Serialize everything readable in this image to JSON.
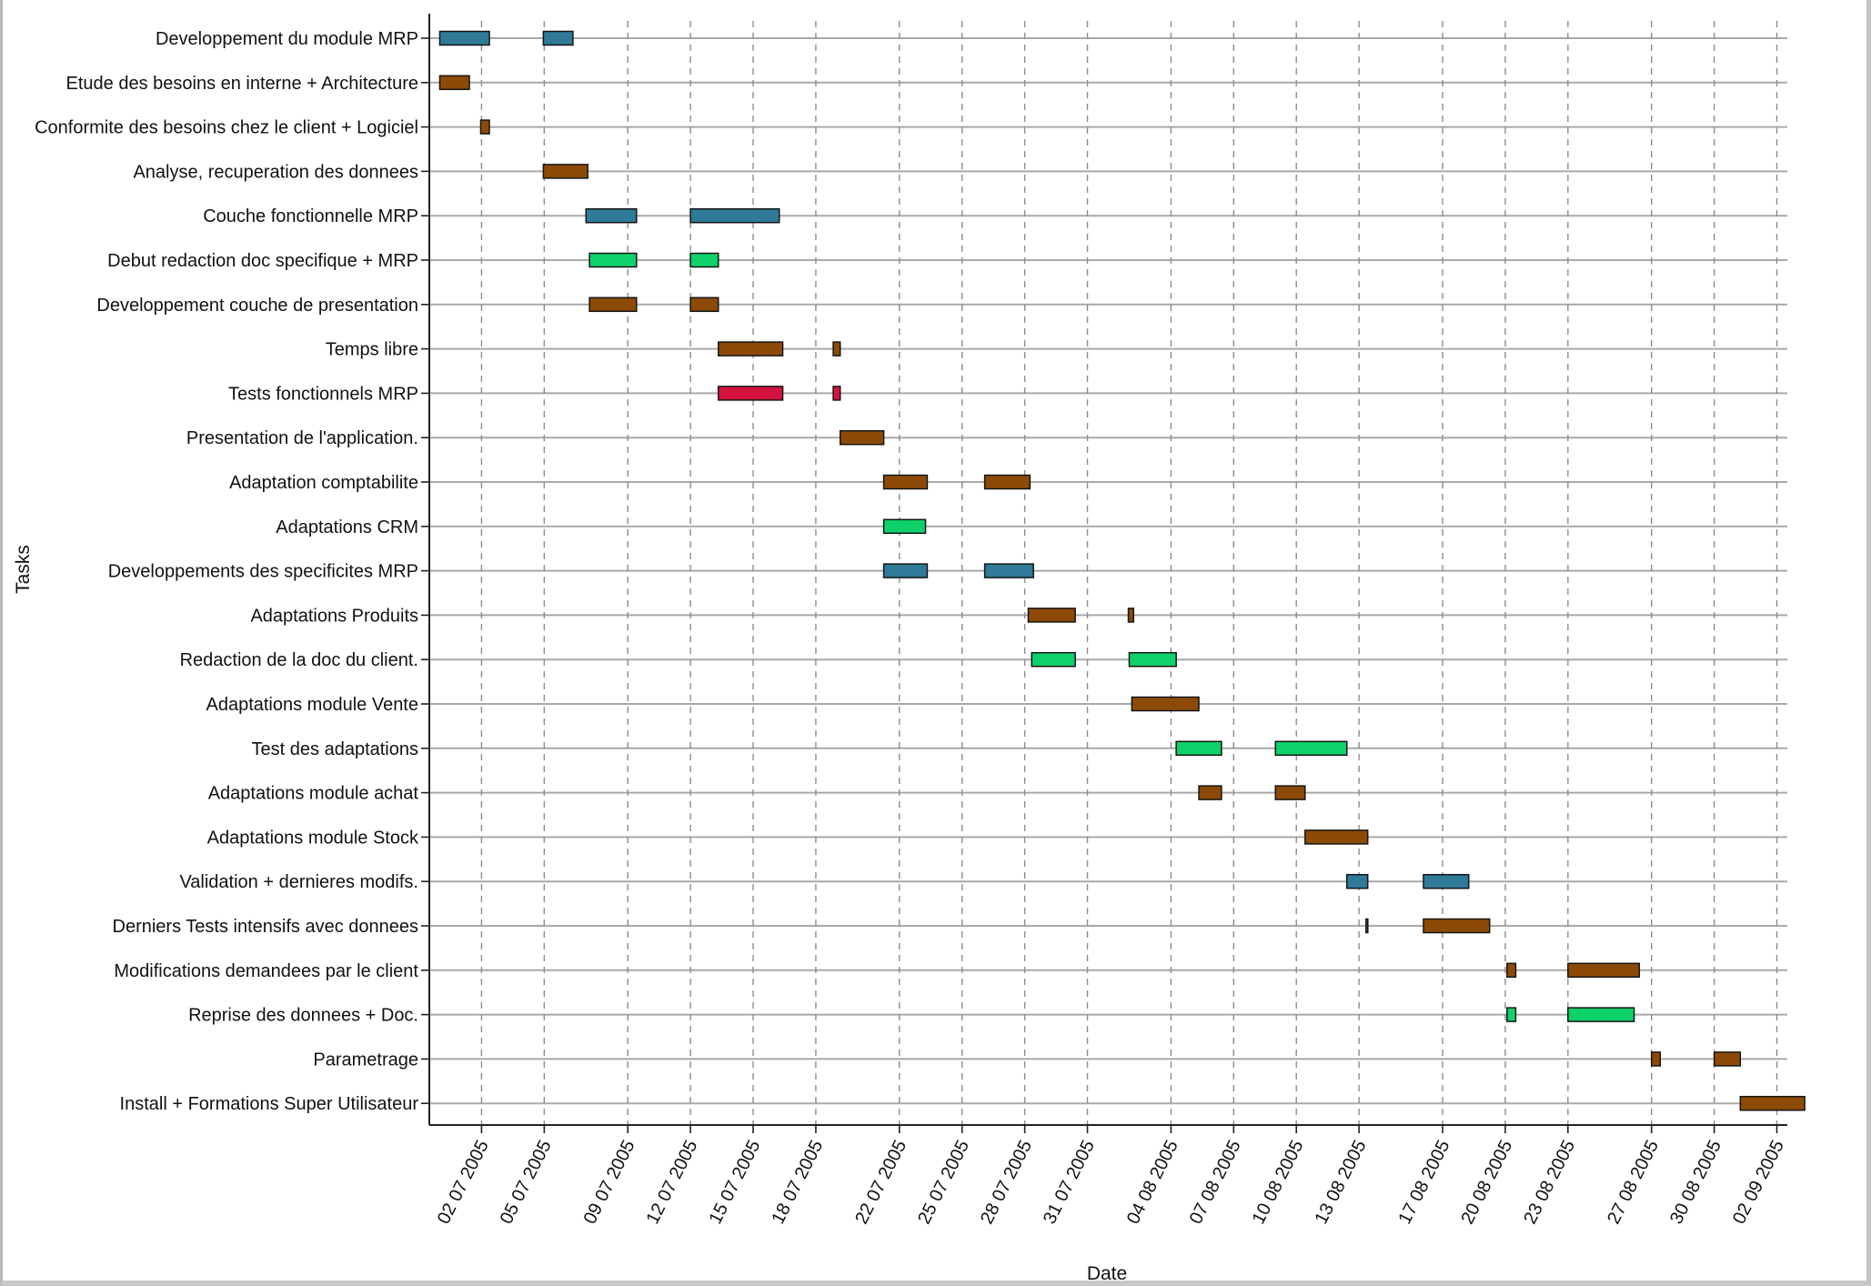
{
  "chart_data": {
    "type": "gantt",
    "ylabel": "Tasks",
    "xlabel": "Date",
    "x_ticks": [
      "02 07 2005",
      "05 07 2005",
      "09 07 2005",
      "12 07 2005",
      "15 07 2005",
      "18 07 2005",
      "22 07 2005",
      "25 07 2005",
      "28 07 2005",
      "31 07 2005",
      "04 08 2005",
      "07 08 2005",
      "10 08 2005",
      "13 08 2005",
      "17 08 2005",
      "20 08 2005",
      "23 08 2005",
      "27 08 2005",
      "30 08 2005",
      "02 09 2005"
    ],
    "xlim": [
      "2005-06-29T12:00",
      "2005-09-02T12:00"
    ],
    "grid": "on",
    "colors": {
      "blue": "#2e7a98",
      "brown": "#8c4a06",
      "green": "#0fd16a",
      "red": "#d4123e"
    },
    "tasks": [
      {
        "label": "Developpement du module MRP",
        "color": "blue",
        "segments": [
          [
            "2005-06-30T00:00",
            "2005-07-02T09:00"
          ],
          [
            "2005-07-04T23:00",
            "2005-07-06T09:00"
          ]
        ]
      },
      {
        "label": "Etude des besoins en interne + Architecture",
        "color": "brown",
        "segments": [
          [
            "2005-06-30T00:00",
            "2005-07-01T10:00"
          ]
        ]
      },
      {
        "label": "Conformite des besoins chez le client + Logiciel",
        "color": "brown",
        "segments": [
          [
            "2005-07-01T23:00",
            "2005-07-02T09:00"
          ]
        ]
      },
      {
        "label": "Analyse, recuperation des donnees",
        "color": "brown",
        "segments": [
          [
            "2005-07-04T23:00",
            "2005-07-07T02:00"
          ]
        ]
      },
      {
        "label": "Couche fonctionnelle MRP",
        "color": "blue",
        "segments": [
          [
            "2005-07-07T00:00",
            "2005-07-09T10:00"
          ],
          [
            "2005-07-12T00:00",
            "2005-07-16T06:00"
          ]
        ]
      },
      {
        "label": "Debut redaction doc specifique + MRP",
        "color": "green",
        "segments": [
          [
            "2005-07-07T04:00",
            "2005-07-09T10:00"
          ],
          [
            "2005-07-12T00:00",
            "2005-07-13T08:00"
          ]
        ]
      },
      {
        "label": "Developpement couche de presentation",
        "color": "brown",
        "segments": [
          [
            "2005-07-07T04:00",
            "2005-07-09T10:00"
          ],
          [
            "2005-07-12T00:00",
            "2005-07-13T08:00"
          ]
        ]
      },
      {
        "label": "Temps libre",
        "color": "brown",
        "segments": [
          [
            "2005-07-13T08:00",
            "2005-07-16T10:00"
          ],
          [
            "2005-07-18T20:00",
            "2005-07-19T04:00"
          ]
        ]
      },
      {
        "label": "Tests fonctionnels MRP",
        "color": "red",
        "segments": [
          [
            "2005-07-13T08:00",
            "2005-07-16T10:00"
          ],
          [
            "2005-07-18T20:00",
            "2005-07-19T04:00"
          ]
        ]
      },
      {
        "label": "Presentation de l'application.",
        "color": "brown",
        "segments": [
          [
            "2005-07-19T04:00",
            "2005-07-21T06:00"
          ]
        ]
      },
      {
        "label": "Adaptation comptabilite",
        "color": "brown",
        "segments": [
          [
            "2005-07-21T06:00",
            "2005-07-23T08:00"
          ],
          [
            "2005-07-26T02:00",
            "2005-07-28T06:00"
          ]
        ]
      },
      {
        "label": "Adaptations CRM",
        "color": "green",
        "segments": [
          [
            "2005-07-21T06:00",
            "2005-07-23T06:00"
          ]
        ]
      },
      {
        "label": "Developpements des specificites MRP",
        "color": "blue",
        "segments": [
          [
            "2005-07-21T06:00",
            "2005-07-23T08:00"
          ],
          [
            "2005-07-26T02:00",
            "2005-07-28T10:00"
          ]
        ]
      },
      {
        "label": "Adaptations Produits",
        "color": "brown",
        "segments": [
          [
            "2005-07-28T04:00",
            "2005-07-30T10:00"
          ],
          [
            "2005-08-01T23:00",
            "2005-08-02T05:00"
          ]
        ]
      },
      {
        "label": "Redaction de la doc du client.",
        "color": "green",
        "segments": [
          [
            "2005-07-28T08:00",
            "2005-07-30T10:00"
          ],
          [
            "2005-08-02T00:00",
            "2005-08-04T06:00"
          ]
        ]
      },
      {
        "label": "Adaptations module Vente",
        "color": "brown",
        "segments": [
          [
            "2005-08-02T03:00",
            "2005-08-05T08:00"
          ]
        ]
      },
      {
        "label": "Test des adaptations",
        "color": "green",
        "segments": [
          [
            "2005-08-04T06:00",
            "2005-08-06T10:00"
          ],
          [
            "2005-08-09T00:00",
            "2005-08-12T10:00"
          ]
        ]
      },
      {
        "label": "Adaptations module achat",
        "color": "brown",
        "segments": [
          [
            "2005-08-05T08:00",
            "2005-08-06T10:00"
          ],
          [
            "2005-08-09T00:00",
            "2005-08-10T10:00"
          ]
        ]
      },
      {
        "label": "Adaptations module Stock",
        "color": "brown",
        "segments": [
          [
            "2005-08-10T10:00",
            "2005-08-13T10:00"
          ]
        ]
      },
      {
        "label": "Validation + dernieres modifs.",
        "color": "blue",
        "segments": [
          [
            "2005-08-12T10:00",
            "2005-08-13T10:00"
          ],
          [
            "2005-08-16T02:00",
            "2005-08-18T06:00"
          ]
        ]
      },
      {
        "label": "Derniers Tests intensifs avec donnees",
        "color": "brown",
        "segments": [
          [
            "2005-08-13T08:00",
            "2005-08-13T10:00"
          ],
          [
            "2005-08-16T02:00",
            "2005-08-19T06:00"
          ]
        ]
      },
      {
        "label": "Modifications demandees par le client",
        "color": "brown",
        "segments": [
          [
            "2005-08-20T02:00",
            "2005-08-20T12:00"
          ],
          [
            "2005-08-23T00:00",
            "2005-08-26T10:00"
          ]
        ]
      },
      {
        "label": "Reprise des donnees + Doc.",
        "color": "green",
        "segments": [
          [
            "2005-08-20T02:00",
            "2005-08-20T12:00"
          ],
          [
            "2005-08-23T00:00",
            "2005-08-26T04:00"
          ]
        ]
      },
      {
        "label": "Parametrage",
        "color": "brown",
        "segments": [
          [
            "2005-08-27T00:00",
            "2005-08-27T10:00"
          ],
          [
            "2005-08-30T00:00",
            "2005-08-31T06:00"
          ]
        ]
      },
      {
        "label": "Install + Formations Super Utilisateur",
        "color": "brown",
        "segments": [
          [
            "2005-08-31T06:00",
            "2005-09-03T08:00"
          ]
        ]
      }
    ]
  }
}
